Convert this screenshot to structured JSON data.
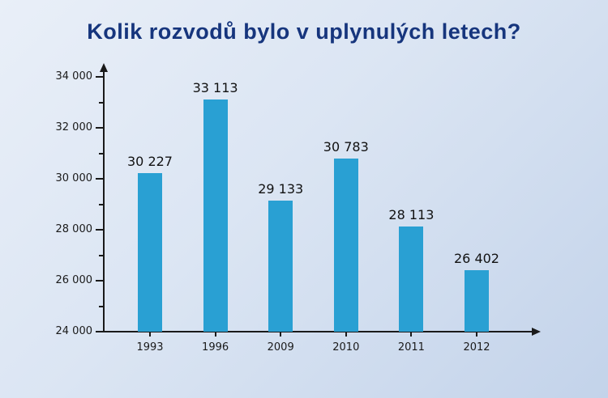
{
  "title": "Kolik rozvodů bylo v uplynulých letech?",
  "colors": {
    "bar": "#29a0d3",
    "axis": "#1a1a1a",
    "title": "#16357d",
    "background_top": "#e9eff8",
    "background_bottom": "#c3d3ea"
  },
  "chart_data": {
    "type": "bar",
    "title": "Kolik rozvodů bylo v uplynulých letech?",
    "xlabel": "",
    "ylabel": "",
    "categories": [
      "1993",
      "1996",
      "2009",
      "2010",
      "2011",
      "2012"
    ],
    "values": [
      30227,
      33113,
      29133,
      30783,
      28113,
      26402
    ],
    "value_labels": [
      "30 227",
      "33 113",
      "29 133",
      "30 783",
      "28 113",
      "26 402"
    ],
    "ylim": [
      24000,
      34000
    ],
    "y_major_step": 2000,
    "y_minor_step": 1000,
    "y_tick_labels": [
      "24 000",
      "26 000",
      "28 000",
      "30 000",
      "32 000",
      "34 000"
    ],
    "grid": false,
    "legend": false,
    "bar_color": "#29a0d3"
  }
}
